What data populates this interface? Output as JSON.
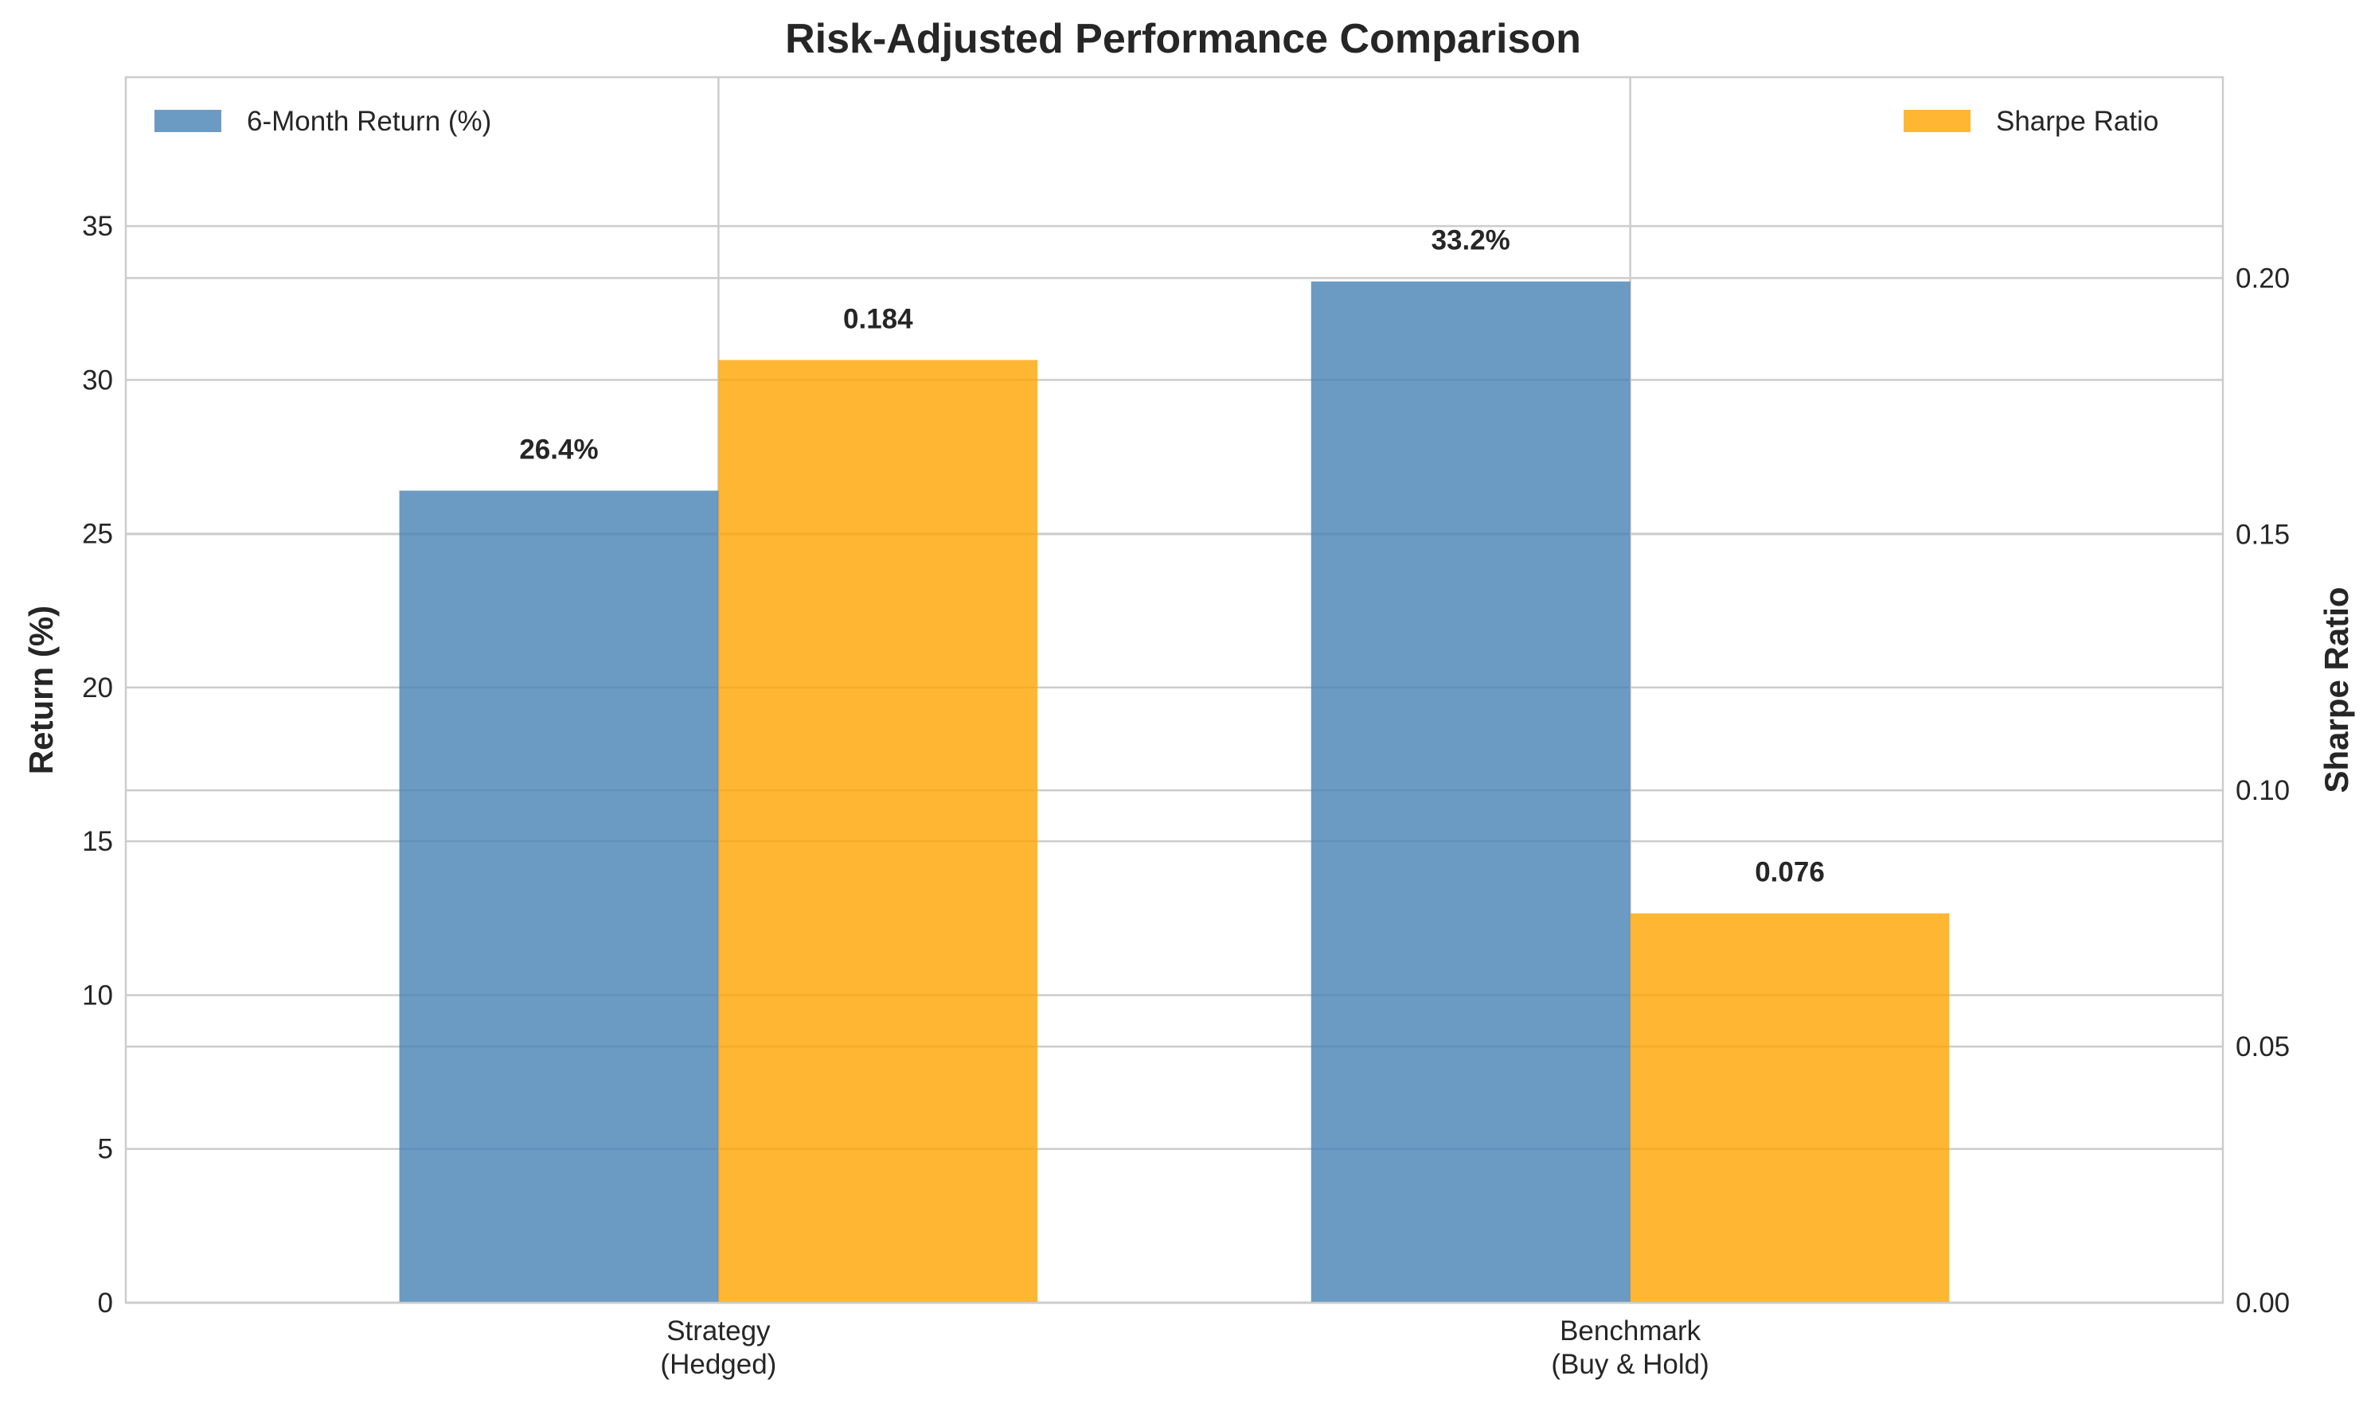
{
  "chart_data": {
    "type": "bar",
    "title": "Risk-Adjusted Performance Comparison",
    "categories": [
      [
        "Strategy",
        "(Hedged)"
      ],
      [
        "Benchmark",
        "(Buy & Hold)"
      ]
    ],
    "series": [
      {
        "name": "6-Month Return (%)",
        "axis": "left",
        "color": "#4682b4",
        "values": [
          26.4,
          33.2
        ],
        "labels": [
          "26.4%",
          "33.2%"
        ]
      },
      {
        "name": "Sharpe Ratio",
        "axis": "right",
        "color": "#ffa500",
        "values": [
          0.184,
          0.076
        ],
        "labels": [
          "0.184",
          "0.076"
        ]
      }
    ],
    "ylabel_left": "Return (%)",
    "ylabel_right": "Sharpe Ratio",
    "ylim_left": [
      0,
      39.84
    ],
    "ylim_right": [
      0,
      0.2392
    ],
    "yticks_left": [
      "0",
      "5",
      "10",
      "15",
      "20",
      "25",
      "30",
      "35"
    ],
    "yticks_right": [
      "0.00",
      "0.05",
      "0.10",
      "0.15",
      "0.20"
    ],
    "grid": true,
    "legend": [
      {
        "series": 0,
        "placement": "top-left"
      },
      {
        "series": 1,
        "placement": "top-right"
      }
    ]
  }
}
